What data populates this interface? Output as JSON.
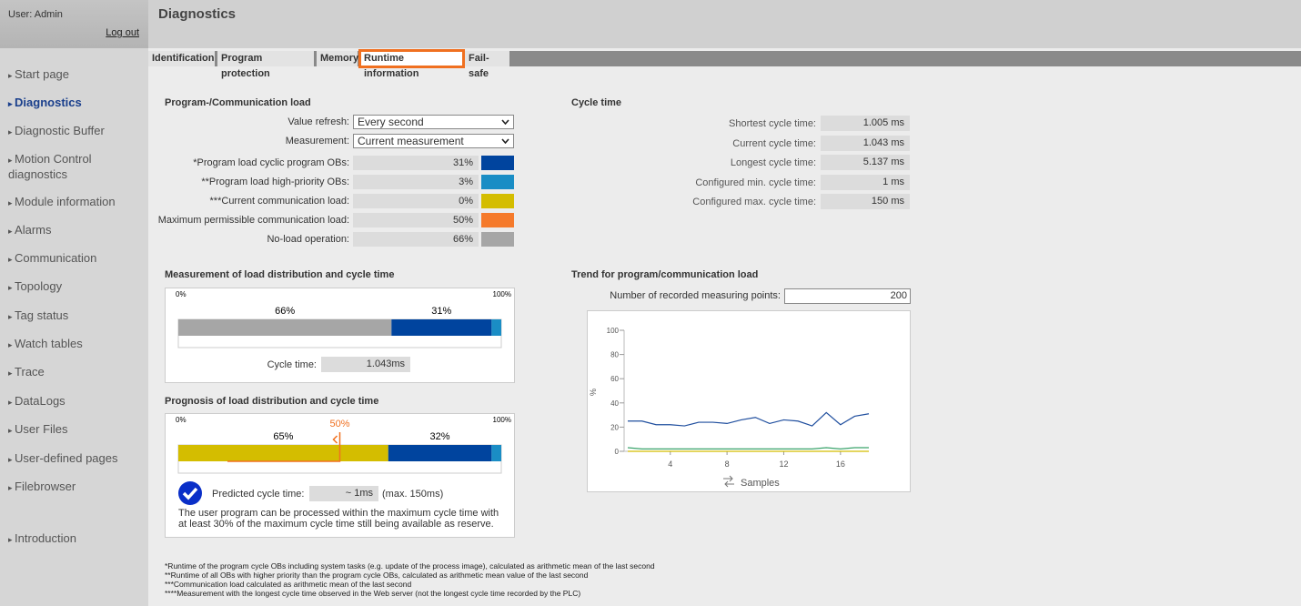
{
  "sidebar": {
    "user": "User: Admin",
    "logout": "Log out",
    "nav": [
      "Start page",
      "Diagnostics",
      "Diagnostic Buffer",
      "Motion Control diagnostics",
      "Module information",
      "Alarms",
      "Communication",
      "Topology",
      "Tag status",
      "Watch tables",
      "Trace",
      "DataLogs",
      "User Files",
      "User-defined pages",
      "Filebrowser",
      "Introduction"
    ],
    "active": 1
  },
  "header": {
    "title": "Diagnostics"
  },
  "tabs": {
    "items": [
      "Identification",
      "Program protection",
      "Memory",
      "Runtime information",
      "Fail-safe"
    ],
    "active": 3
  },
  "load": {
    "title": "Program-/Communication load",
    "refresh": {
      "label": "Value refresh:",
      "value": "Every second"
    },
    "measurement": {
      "label": "Measurement:",
      "value": "Current measurement"
    },
    "rows": [
      {
        "label": "*Program load cyclic program OBs:",
        "value": "31%",
        "color": "#00449e"
      },
      {
        "label": "**Program load high-priority OBs:",
        "value": "3%",
        "color": "#1a8dc5"
      },
      {
        "label": "***Current communication load:",
        "value": "0%",
        "color": "#d4bd00"
      },
      {
        "label": "Maximum permissible communication load:",
        "value": "50%",
        "color": "#f57a2b"
      },
      {
        "label": "No-load operation:",
        "value": "66%",
        "color": "#a6a6a6"
      }
    ]
  },
  "cycle": {
    "title": "Cycle time",
    "rows": [
      {
        "label": "Shortest cycle time:",
        "value": "1.005 ms"
      },
      {
        "label": "Current cycle time:",
        "value": "1.043 ms"
      },
      {
        "label": "Longest cycle time:",
        "value": "5.137 ms"
      },
      {
        "label": "Configured min. cycle time:",
        "value": "1 ms"
      },
      {
        "label": "Configured max. cycle time:",
        "value": "150 ms"
      }
    ]
  },
  "distribution": {
    "title": "Measurement of load distribution and cycle time",
    "min": "0%",
    "max": "100%",
    "segments": [
      {
        "value": 66,
        "label": "66%",
        "color": "#a6a6a6"
      },
      {
        "value": 31,
        "label": "31%",
        "color": "#00449e"
      },
      {
        "value": 3,
        "color": "#1a8dc5"
      }
    ],
    "cycle_label": "Cycle time:",
    "cycle_value": "1.043ms"
  },
  "prognosis": {
    "title": "Prognosis of load distribution and cycle time",
    "min": "0%",
    "max": "100%",
    "segments": [
      {
        "value": 65,
        "label": "65%",
        "color": "#d4bd00"
      },
      {
        "value": 32,
        "label": "32%",
        "color": "#00449e"
      },
      {
        "value": 3,
        "color": "#1a8dc5"
      }
    ],
    "limit": {
      "value": 50,
      "label": "50%"
    },
    "predicted_label": "Predicted cycle time:",
    "predicted_value": "~ 1ms",
    "predicted_max": "(max. 150ms)",
    "message": "The user program can be processed within the maximum cycle time with at least 30% of the maximum cycle time still being available as reserve."
  },
  "trend": {
    "title": "Trend for program/communication load",
    "points_label": "Number of recorded measuring points:",
    "points_value": "200"
  },
  "chart_data": {
    "type": "line",
    "x_label": "Samples",
    "y_label": "%",
    "x": [
      1,
      2,
      3,
      4,
      5,
      6,
      7,
      8,
      9,
      10,
      11,
      12,
      13,
      14,
      15,
      16,
      17,
      18
    ],
    "series": [
      {
        "color": "#1f4e9e",
        "values": [
          25,
          25,
          22,
          22,
          21,
          24,
          24,
          23,
          26,
          28,
          23,
          26,
          25,
          21,
          32,
          22,
          29,
          31
        ]
      },
      {
        "color": "#3aa36b",
        "values": [
          3,
          2,
          2,
          2,
          2,
          2,
          2,
          2,
          2,
          2,
          2,
          2,
          2,
          2,
          3,
          2,
          3,
          3
        ]
      },
      {
        "color": "#d4bd00",
        "values": [
          0,
          0,
          0,
          0,
          0,
          0,
          0,
          0,
          0,
          0,
          0,
          0,
          0,
          0,
          0,
          0,
          0,
          0
        ]
      }
    ],
    "xlim": [
      1,
      18
    ],
    "xticks": [
      4,
      8,
      12,
      16
    ],
    "ylim": [
      0,
      100
    ],
    "yticks": [
      0,
      20,
      40,
      60,
      80,
      100
    ]
  },
  "footnotes": [
    "*Runtime of the program cycle OBs including system tasks (e.g. update of the process image), calculated as arithmetic mean of the last second",
    "**Runtime of all OBs with higher priority than the program cycle OBs, calculated as arithmetic mean value of the last second",
    "***Communication load calculated as arithmetic mean of the last second",
    "****Measurement with the longest cycle time observed in the Web server (not the longest cycle time recorded by the PLC)"
  ]
}
